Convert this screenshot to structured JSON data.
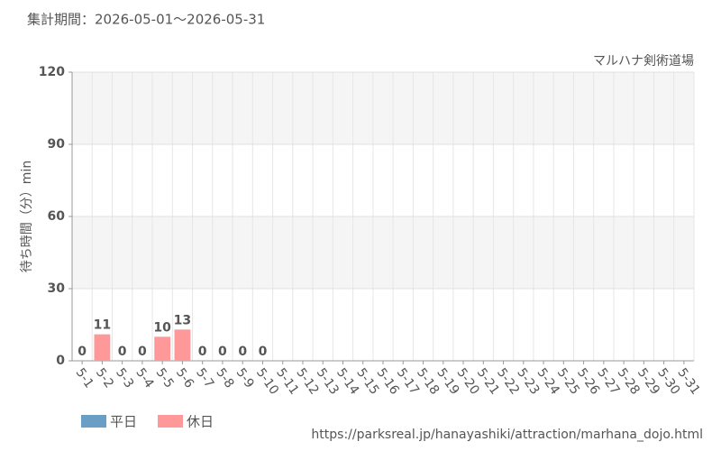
{
  "chart_data": {
    "type": "bar",
    "title": "集計期間：2026-05-01～2026-05-31",
    "subtitle": "マルハナ剣術道場",
    "y_label": "待ち時間（分）min",
    "source": "https://parksreal.jp/hanayashiki/attraction/marhana_dojo.html",
    "categories": [
      "5-1",
      "5-2",
      "5-3",
      "5-4",
      "5-5",
      "5-6",
      "5-7",
      "5-8",
      "5-9",
      "5-10",
      "5-11",
      "5-12",
      "5-13",
      "5-14",
      "5-15",
      "5-16",
      "5-17",
      "5-18",
      "5-19",
      "5-20",
      "5-21",
      "5-22",
      "5-23",
      "5-24",
      "5-25",
      "5-26",
      "5-27",
      "5-28",
      "5-29",
      "5-30",
      "5-31"
    ],
    "category_colors": [
      "#333",
      "#f08080",
      "#f08080",
      "#f08080",
      "#f08080",
      "#f08080",
      "#333",
      "#333",
      "#f08080",
      "#f08080",
      "#333",
      "#333",
      "#333",
      "#333",
      "#333",
      "#f08080",
      "#f08080",
      "#333",
      "#333",
      "#333",
      "#333",
      "#333",
      "#f08080",
      "#f08080",
      "#333",
      "#333",
      "#333",
      "#333",
      "#333",
      "#f08080",
      "#f08080"
    ],
    "series": [
      {
        "name": "平日",
        "color": "#6a9ec5",
        "values": [
          0,
          null,
          null,
          null,
          null,
          null,
          0,
          0,
          null,
          null,
          null,
          null,
          null,
          null,
          null,
          null,
          null,
          null,
          null,
          null,
          null,
          null,
          null,
          null,
          null,
          null,
          null,
          null,
          null,
          null,
          null
        ]
      },
      {
        "name": "休日",
        "color": "#ff9999",
        "values": [
          null,
          11,
          0,
          0,
          10,
          13,
          null,
          null,
          0,
          0,
          null,
          null,
          null,
          null,
          null,
          null,
          null,
          null,
          null,
          null,
          null,
          null,
          null,
          null,
          null,
          null,
          null,
          null,
          null,
          null,
          null
        ]
      }
    ],
    "ylim": [
      0,
      120
    ],
    "yticks": [
      0,
      30,
      60,
      90,
      120
    ],
    "grid": true
  }
}
